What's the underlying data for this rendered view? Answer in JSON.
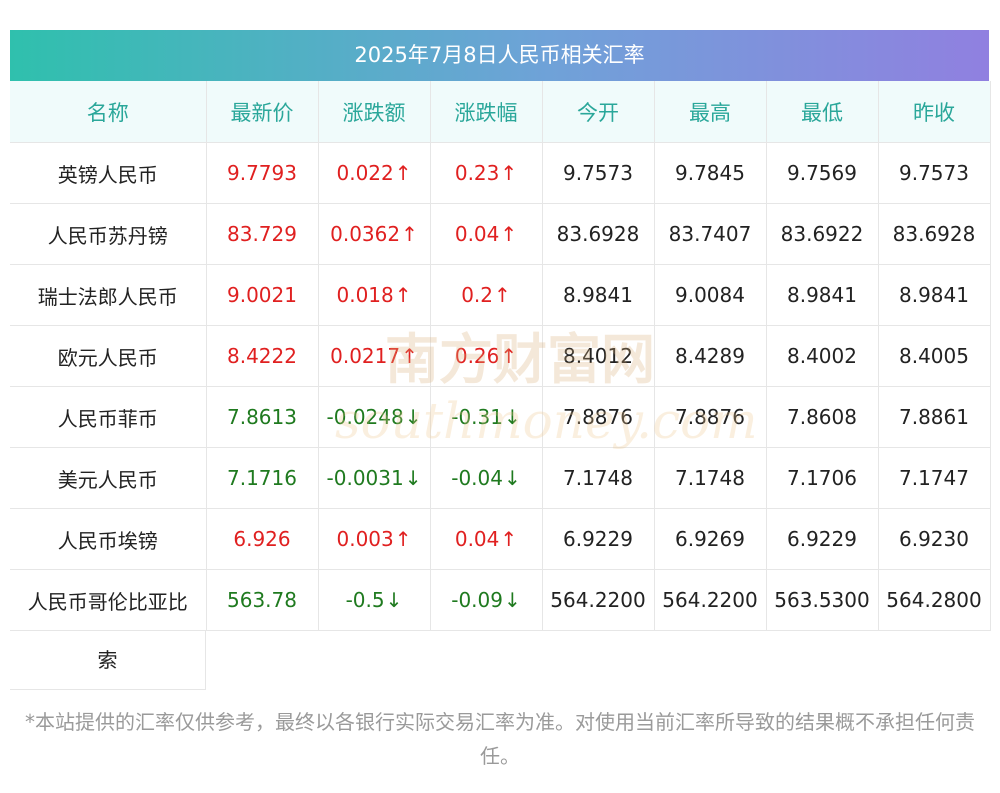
{
  "title": "2025年7月8日人民币相关汇率",
  "columns": [
    "名称",
    "最新价",
    "涨跌额",
    "涨跌幅",
    "今开",
    "最高",
    "最低",
    "昨收"
  ],
  "rows": [
    {
      "name": "英镑人民币",
      "latest": "9.7793",
      "change": "0.022",
      "pct": "0.23",
      "arrow": "↑",
      "dir": "up",
      "open": "9.7573",
      "high": "9.7845",
      "low": "9.7569",
      "prev": "9.7573"
    },
    {
      "name": "人民币苏丹镑",
      "latest": "83.729",
      "change": "0.0362",
      "pct": "0.04",
      "arrow": "↑",
      "dir": "up",
      "open": "83.6928",
      "high": "83.7407",
      "low": "83.6922",
      "prev": "83.6928"
    },
    {
      "name": "瑞士法郎人民币",
      "latest": "9.0021",
      "change": "0.018",
      "pct": "0.2",
      "arrow": "↑",
      "dir": "up",
      "open": "8.9841",
      "high": "9.0084",
      "low": "8.9841",
      "prev": "8.9841"
    },
    {
      "name": "欧元人民币",
      "latest": "8.4222",
      "change": "0.0217",
      "pct": "0.26",
      "arrow": "↑",
      "dir": "up",
      "open": "8.4012",
      "high": "8.4289",
      "low": "8.4002",
      "prev": "8.4005"
    },
    {
      "name": "人民币菲币",
      "latest": "7.8613",
      "change": "-0.0248",
      "pct": "-0.31",
      "arrow": "↓",
      "dir": "down",
      "open": "7.8876",
      "high": "7.8876",
      "low": "7.8608",
      "prev": "7.8861"
    },
    {
      "name": "美元人民币",
      "latest": "7.1716",
      "change": "-0.0031",
      "pct": "-0.04",
      "arrow": "↓",
      "dir": "down",
      "open": "7.1748",
      "high": "7.1748",
      "low": "7.1706",
      "prev": "7.1747"
    },
    {
      "name": "人民币埃镑",
      "latest": "6.926",
      "change": "0.003",
      "pct": "0.04",
      "arrow": "↑",
      "dir": "up",
      "open": "6.9229",
      "high": "6.9269",
      "low": "6.9229",
      "prev": "6.9230"
    },
    {
      "name": "人民币哥伦比亚比",
      "latest": "563.78",
      "change": "-0.5",
      "pct": "-0.09",
      "arrow": "↓",
      "dir": "down",
      "open": "564.2200",
      "high": "564.2200",
      "low": "563.5300",
      "prev": "564.2800"
    }
  ],
  "last_row_name_continuation": "索",
  "colors": {
    "up": "#e02020",
    "down": "#1f7a1f",
    "header_text": "#2aa79a",
    "header_bg": "#f0fbfb"
  },
  "watermark": {
    "cn": "南方财富网",
    "en": "southmoney.com"
  },
  "footnote": "*本站提供的汇率仅供参考，最终以各银行实际交易汇率为准。对使用当前汇率所导致的结果概不承担任何责任。"
}
